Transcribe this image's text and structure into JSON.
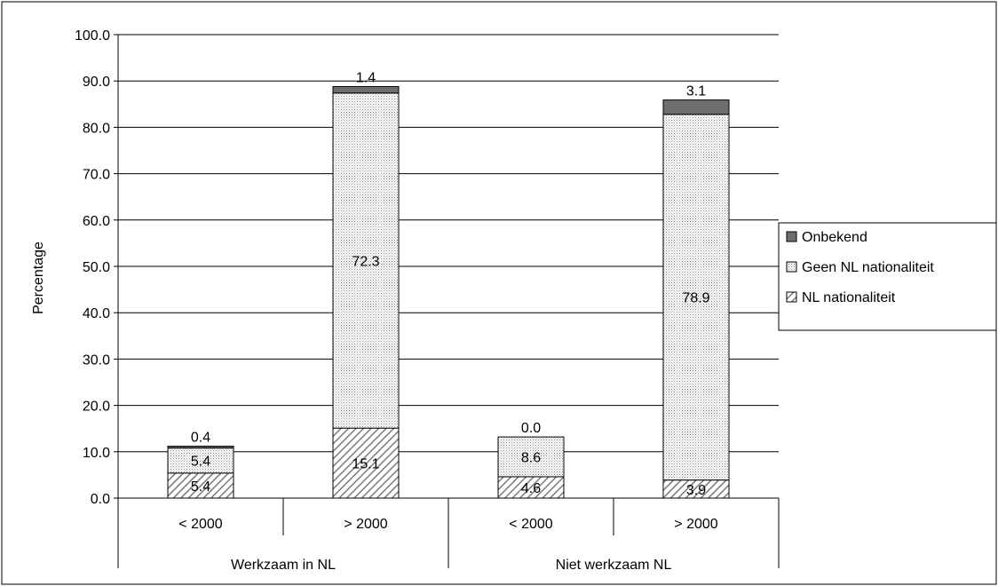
{
  "chart_data": {
    "type": "bar",
    "stacked": true,
    "xlabel": "",
    "ylabel": "Percentage",
    "ylim": [
      0,
      100
    ],
    "yticks": [
      "0.0",
      "10.0",
      "20.0",
      "30.0",
      "40.0",
      "50.0",
      "60.0",
      "70.0",
      "80.0",
      "90.0",
      "100.0"
    ],
    "groups": [
      {
        "label": "Werkzaam in NL",
        "categories": [
          "< 2000",
          "> 2000"
        ]
      },
      {
        "label": "Niet werkzaam NL",
        "categories": [
          "< 2000",
          "> 2000"
        ]
      }
    ],
    "categories": [
      "< 2000",
      "> 2000",
      "< 2000",
      "> 2000"
    ],
    "series": [
      {
        "name": "NL nationaliteit",
        "values": [
          5.4,
          15.1,
          4.6,
          3.9
        ],
        "labels": [
          "5.4",
          "15.1",
          "4.6",
          "3.9"
        ],
        "pattern": "hatch"
      },
      {
        "name": "Geen NL nationaliteit",
        "values": [
          5.4,
          72.3,
          8.6,
          78.9
        ],
        "labels": [
          "5.4",
          "72.3",
          "8.6",
          "78.9"
        ],
        "pattern": "dots"
      },
      {
        "name": "Onbekend",
        "values": [
          0.4,
          1.4,
          0.0,
          3.1
        ],
        "labels": [
          "0.4",
          "1.4",
          "0.0",
          "3.1"
        ],
        "pattern": "solid"
      }
    ],
    "legend": {
      "placement": "right",
      "order": [
        "Onbekend",
        "Geen NL nationaliteit",
        "NL nationaliteit"
      ]
    },
    "grid": true,
    "colors": {
      "solid": "#6e6e6e",
      "hatch_line": "#7a7a7a",
      "dots": "#9a9a9a",
      "border": "#000000"
    }
  }
}
